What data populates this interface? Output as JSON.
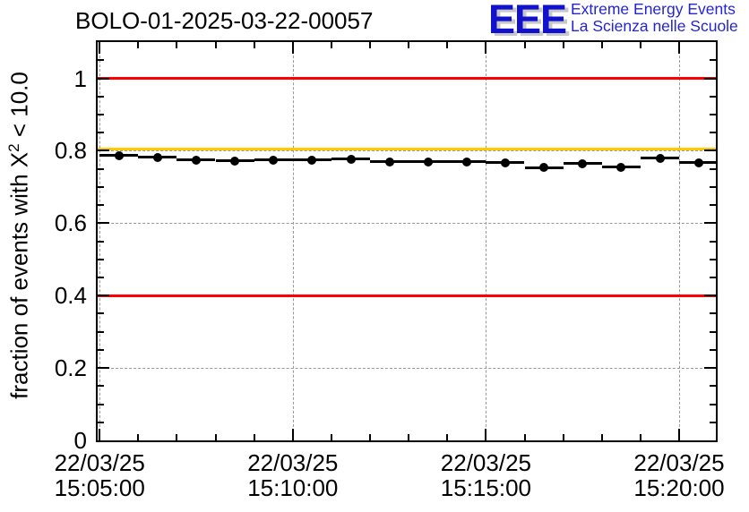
{
  "logo": {
    "letters": "EEE",
    "line1": "Extreme Energy Events",
    "line2": "La Scienza nelle Scuole",
    "letters_color": "#1212cc",
    "text_color": "#2424d6",
    "shadow_color": "#c8c8c8"
  },
  "chart_data": {
    "type": "line",
    "title": "BOLO-01-2025-03-22-00057",
    "ylabel": "fraction of events with X^2 < 10.0",
    "ylabel_parts": {
      "main": "fraction of events with X",
      "sup": "2",
      "tail": " < 10.0"
    },
    "date": "22/03/25",
    "x": [
      "15:05:30",
      "15:06:30",
      "15:07:30",
      "15:08:30",
      "15:09:30",
      "15:10:30",
      "15:11:30",
      "15:12:30",
      "15:13:30",
      "15:14:30",
      "15:15:30",
      "15:16:30",
      "15:17:30",
      "15:18:30",
      "15:19:30",
      "15:20:30"
    ],
    "values": [
      0.787,
      0.782,
      0.775,
      0.772,
      0.775,
      0.775,
      0.777,
      0.77,
      0.769,
      0.77,
      0.767,
      0.753,
      0.765,
      0.755,
      0.78,
      0.767
    ],
    "x_error_seconds": 30,
    "series_color": "#000000",
    "marker": "filled-circle",
    "xlim": [
      "15:04:57",
      "15:20:57"
    ],
    "ylim": [
      0,
      1.1
    ],
    "xticks": [
      {
        "date": "22/03/25",
        "time": "15:05:00"
      },
      {
        "date": "22/03/25",
        "time": "15:10:00"
      },
      {
        "date": "22/03/25",
        "time": "15:15:00"
      },
      {
        "date": "22/03/25",
        "time": "15:20:00"
      }
    ],
    "yticks": [
      0,
      0.2,
      0.4,
      0.6,
      0.8,
      1
    ],
    "ytick_labels": [
      "0",
      "0.2",
      "0.4",
      "0.6",
      "0.8",
      "1"
    ],
    "minor_xtick_interval_seconds": 60,
    "minor_ytick_interval": 0.05,
    "grid": "dashed",
    "grid_color": "#999999",
    "thresholds": [
      {
        "name": "upper-limit-line",
        "value": 1.0,
        "color": "#ff0000"
      },
      {
        "name": "warning-level-line",
        "value": 0.805,
        "color": "#ffc800"
      },
      {
        "name": "lower-limit-line",
        "value": 0.4,
        "color": "#ff0000"
      }
    ]
  }
}
